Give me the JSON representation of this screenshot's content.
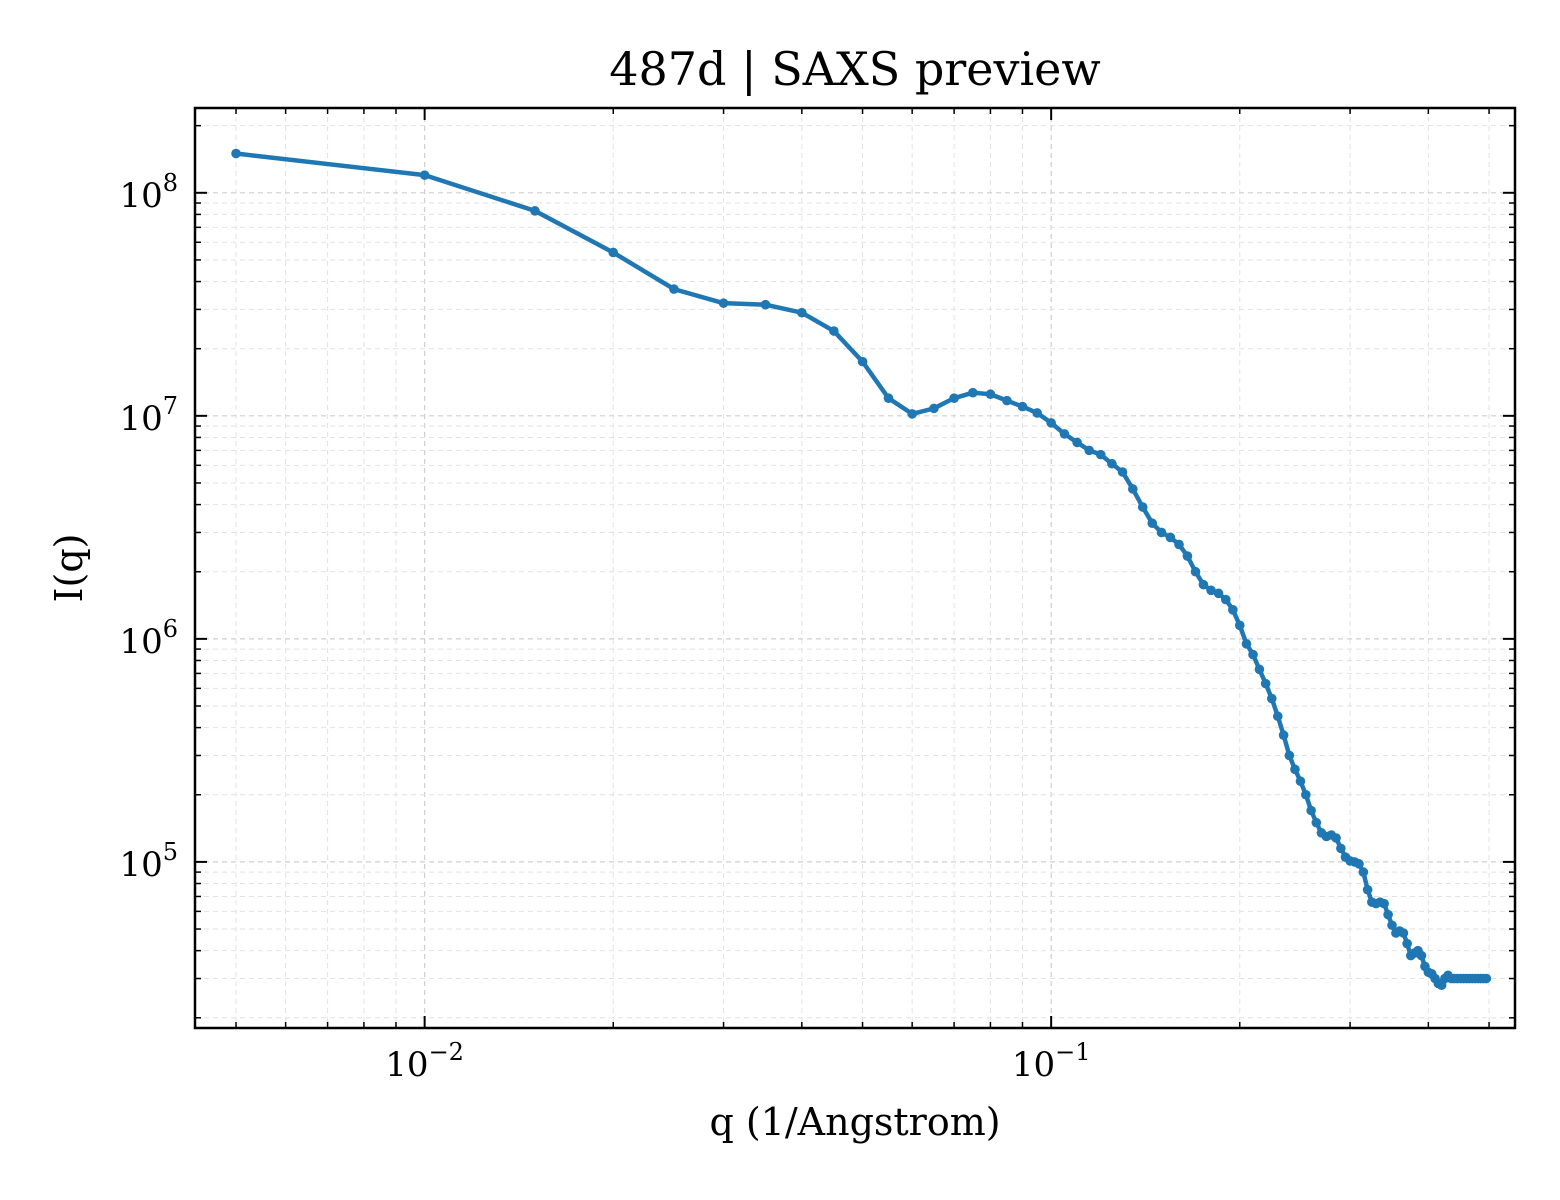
{
  "chart_data": {
    "type": "line",
    "title": "487d | SAXS preview",
    "xlabel": "q (1/Angstrom)",
    "ylabel": "I(q)",
    "xscale": "log",
    "yscale": "log",
    "xlim": [
      0.0043,
      0.55
    ],
    "ylim": [
      18000,
      240000000
    ],
    "grid": true,
    "legend": "none",
    "color": "#1f77b4",
    "x_ticks": [
      {
        "value": 0.01,
        "label_base": "10",
        "label_exp": "−2"
      },
      {
        "value": 0.1,
        "label_base": "10",
        "label_exp": "−1"
      }
    ],
    "y_ticks": [
      {
        "value": 100000,
        "label_base": "10",
        "label_exp": "5"
      },
      {
        "value": 1000000,
        "label_base": "10",
        "label_exp": "6"
      },
      {
        "value": 10000000,
        "label_base": "10",
        "label_exp": "7"
      },
      {
        "value": 100000000,
        "label_base": "10",
        "label_exp": "8"
      }
    ],
    "series": [
      {
        "x": [
          0.005,
          0.01,
          0.015,
          0.02,
          0.025,
          0.03,
          0.035,
          0.04,
          0.045,
          0.05,
          0.055,
          0.06,
          0.065,
          0.07,
          0.075,
          0.08,
          0.085,
          0.09,
          0.095,
          0.1,
          0.105,
          0.11,
          0.115,
          0.12,
          0.125,
          0.13,
          0.135,
          0.14,
          0.145,
          0.15,
          0.155,
          0.16,
          0.165,
          0.17,
          0.175,
          0.18,
          0.185,
          0.19,
          0.195,
          0.2,
          0.205,
          0.21,
          0.215,
          0.22,
          0.225,
          0.23,
          0.235,
          0.24,
          0.245,
          0.25,
          0.255,
          0.26,
          0.265,
          0.27,
          0.275,
          0.28,
          0.285,
          0.29,
          0.295,
          0.3,
          0.305,
          0.31,
          0.315,
          0.32,
          0.325,
          0.33,
          0.335,
          0.34,
          0.345,
          0.35,
          0.355,
          0.36,
          0.365,
          0.37,
          0.375,
          0.38,
          0.385,
          0.39,
          0.395,
          0.4,
          0.405,
          0.41,
          0.415,
          0.42,
          0.425,
          0.43,
          0.435,
          0.44,
          0.445,
          0.45,
          0.455,
          0.46,
          0.465,
          0.47,
          0.475,
          0.48,
          0.485,
          0.49,
          0.495
        ],
        "y": [
          150000000,
          120000000,
          83000000,
          54000000,
          37000000,
          32000000,
          31500000,
          29000000,
          24000000,
          17500000,
          12000000,
          10200000,
          10800000,
          12000000,
          12700000,
          12500000,
          11700000,
          11000000,
          10300000,
          9300000,
          8300000,
          7600000,
          7000000,
          6700000,
          6100000,
          5600000,
          4700000,
          3900000,
          3300000,
          3000000,
          2850000,
          2650000,
          2350000,
          2000000,
          1750000,
          1650000,
          1600000,
          1500000,
          1350000,
          1150000,
          950000,
          850000,
          730000,
          630000,
          540000,
          450000,
          370000,
          300000,
          260000,
          230000,
          200000,
          170000,
          150000,
          135000,
          130000,
          132000,
          128000,
          115000,
          105000,
          101000,
          100000,
          98000,
          90000,
          75000,
          66000,
          65000,
          66000,
          65000,
          58000,
          52000,
          48000,
          49000,
          48000,
          43000,
          38000,
          39000,
          40000,
          38000,
          34000,
          32000,
          31500,
          30000,
          28500,
          28000,
          30000,
          31000,
          30000,
          30000,
          30000,
          30000,
          30000,
          30000,
          30000,
          30000,
          30000,
          30000,
          30000,
          30000,
          30000
        ]
      }
    ]
  }
}
